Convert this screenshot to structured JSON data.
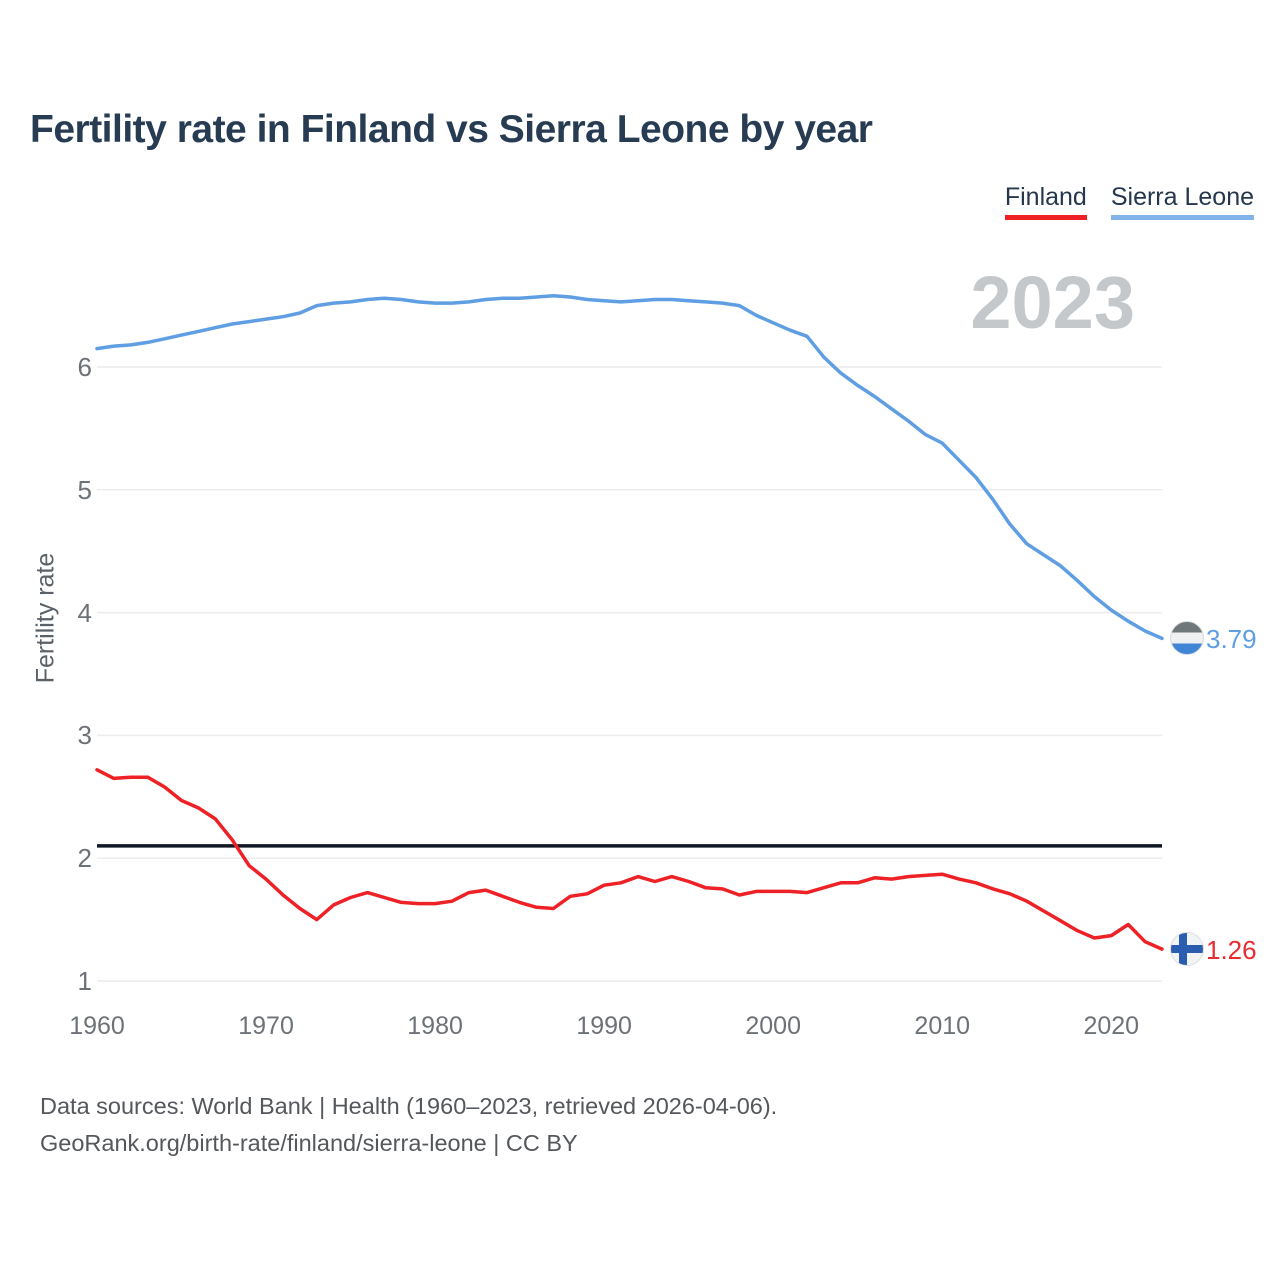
{
  "title": "Fertility rate in Finland vs Sierra Leone by year",
  "legend": {
    "items": [
      {
        "label": "Finland",
        "color": "#ee2226"
      },
      {
        "label": "Sierra Leone",
        "color": "#82b4ea"
      }
    ]
  },
  "watermark": "2023",
  "axes": {
    "y_title": "Fertility rate"
  },
  "end_labels": {
    "sierra_leone": {
      "value": "3.79",
      "icon": "sierra-leone-flag-icon"
    },
    "finland": {
      "value": "1.26",
      "icon": "finland-flag-icon"
    }
  },
  "footer": {
    "line1": "Data sources: World Bank | Health (1960–2023, retrieved 2026-04-06).",
    "line2": "GeoRank.org/birth-rate/finland/sierra-leone | CC BY"
  },
  "chart_data": {
    "type": "line",
    "title": "Fertility rate in Finland vs Sierra Leone by year",
    "xlabel": "",
    "ylabel": "Fertility rate",
    "x_years": [
      1960,
      1961,
      1962,
      1963,
      1964,
      1965,
      1966,
      1967,
      1968,
      1969,
      1970,
      1971,
      1972,
      1973,
      1974,
      1975,
      1976,
      1977,
      1978,
      1979,
      1980,
      1981,
      1982,
      1983,
      1984,
      1985,
      1986,
      1987,
      1988,
      1989,
      1990,
      1991,
      1992,
      1993,
      1994,
      1995,
      1996,
      1997,
      1998,
      1999,
      2000,
      2001,
      2002,
      2003,
      2004,
      2005,
      2006,
      2007,
      2008,
      2009,
      2010,
      2011,
      2012,
      2013,
      2014,
      2015,
      2016,
      2017,
      2018,
      2019,
      2020,
      2021,
      2022,
      2023
    ],
    "series": [
      {
        "name": "Sierra Leone",
        "color": "#5f9ee2",
        "values": [
          6.15,
          6.17,
          6.18,
          6.2,
          6.23,
          6.26,
          6.29,
          6.32,
          6.35,
          6.37,
          6.39,
          6.41,
          6.44,
          6.5,
          6.52,
          6.53,
          6.55,
          6.56,
          6.55,
          6.53,
          6.52,
          6.52,
          6.53,
          6.55,
          6.56,
          6.56,
          6.57,
          6.58,
          6.57,
          6.55,
          6.54,
          6.53,
          6.54,
          6.55,
          6.55,
          6.54,
          6.53,
          6.52,
          6.5,
          6.42,
          6.36,
          6.3,
          6.25,
          6.08,
          5.95,
          5.85,
          5.76,
          5.66,
          5.56,
          5.45,
          5.38,
          5.24,
          5.1,
          4.92,
          4.72,
          4.56,
          4.47,
          4.38,
          4.26,
          4.13,
          4.02,
          3.93,
          3.85,
          3.79
        ]
      },
      {
        "name": "Finland",
        "color": "#ee2226",
        "values": [
          2.72,
          2.65,
          2.66,
          2.66,
          2.58,
          2.47,
          2.41,
          2.32,
          2.15,
          1.94,
          1.83,
          1.7,
          1.59,
          1.5,
          1.62,
          1.68,
          1.72,
          1.68,
          1.64,
          1.63,
          1.63,
          1.65,
          1.72,
          1.74,
          1.69,
          1.64,
          1.6,
          1.59,
          1.69,
          1.71,
          1.78,
          1.8,
          1.85,
          1.81,
          1.85,
          1.81,
          1.76,
          1.75,
          1.7,
          1.73,
          1.73,
          1.73,
          1.72,
          1.76,
          1.8,
          1.8,
          1.84,
          1.83,
          1.85,
          1.86,
          1.87,
          1.83,
          1.8,
          1.75,
          1.71,
          1.65,
          1.57,
          1.49,
          1.41,
          1.35,
          1.37,
          1.46,
          1.32,
          1.26
        ]
      }
    ],
    "reference_line": {
      "value": 2.1,
      "color": "#101826"
    },
    "xticks": [
      1960,
      1970,
      1980,
      1990,
      2000,
      2010,
      2020
    ],
    "yticks": [
      1,
      2,
      3,
      4,
      5,
      6
    ],
    "ylim": [
      0.75,
      6.85
    ],
    "grid": "horizontal",
    "legend_position": "top-right",
    "end_value_labels": {
      "Sierra Leone": 3.79,
      "Finland": 1.26
    },
    "highlight_year": "2023"
  }
}
